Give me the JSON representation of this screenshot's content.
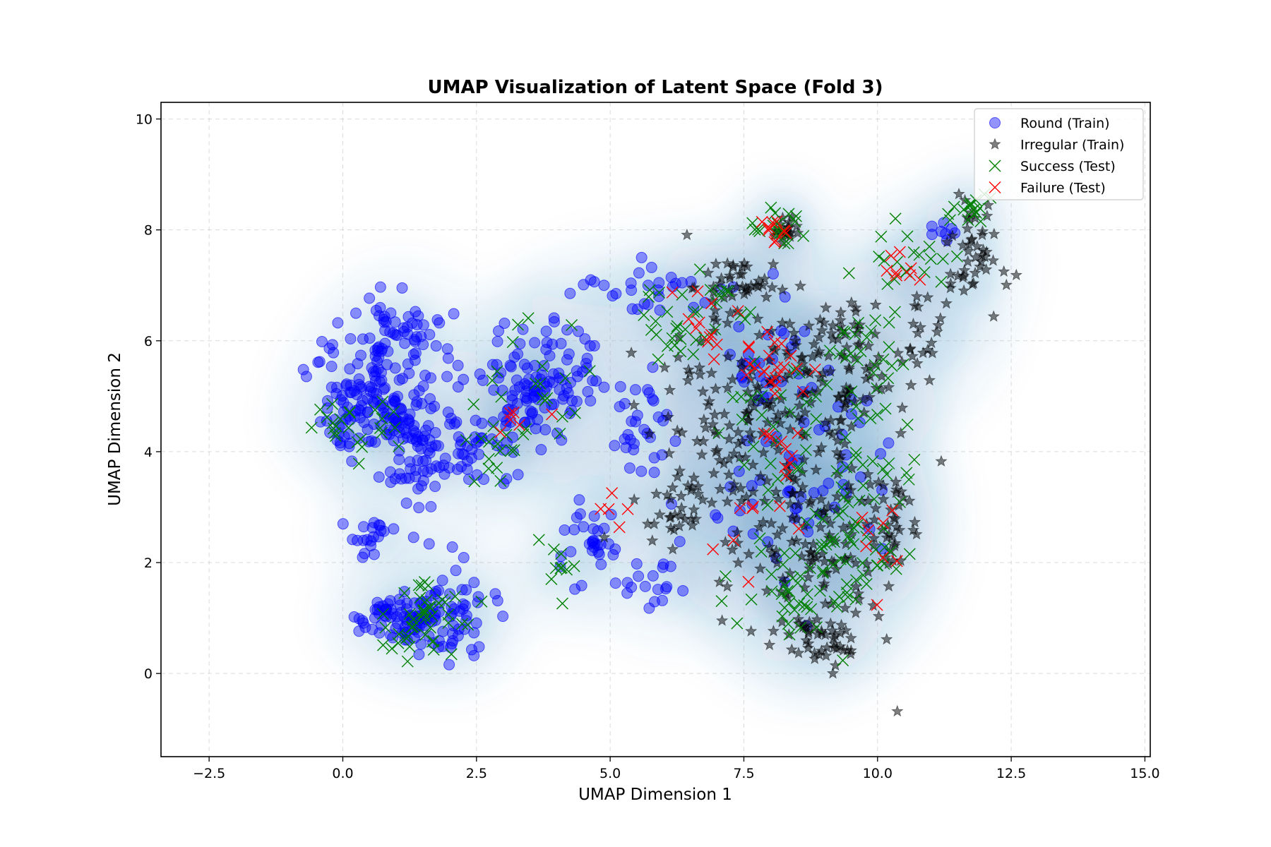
{
  "chart_data": {
    "type": "scatter",
    "title": "UMAP Visualization of Latent Space (Fold 3)",
    "xlabel": "UMAP Dimension 1",
    "ylabel": "UMAP Dimension 2",
    "xlim": [
      -3.4,
      15.1
    ],
    "ylim": [
      -1.5,
      10.3
    ],
    "x_ticks": [
      "−2.5",
      "0.0",
      "2.5",
      "5.0",
      "7.5",
      "10.0",
      "12.5",
      "15.0"
    ],
    "x_tick_values": [
      -2.5,
      0.0,
      2.5,
      5.0,
      7.5,
      10.0,
      12.5,
      15.0
    ],
    "y_ticks": [
      "0",
      "2",
      "4",
      "6",
      "8",
      "10"
    ],
    "y_tick_values": [
      0,
      2,
      4,
      6,
      8,
      10
    ],
    "grid": true,
    "legend_position": "top-right",
    "background": "kde-density-contours",
    "colors": {
      "round": "#0000ff",
      "irregular": "#000000",
      "success": "#008000",
      "failure": "#ff0000",
      "density": "#2c6fae"
    },
    "series": [
      {
        "name": "Round (Train)",
        "marker": "circle",
        "color": "#0000ff",
        "clusters": [
          {
            "cx": 0.5,
            "cy": 5.0,
            "sx": 0.5,
            "sy": 0.55,
            "n": 120
          },
          {
            "cx": 1.5,
            "cy": 4.1,
            "sx": 0.55,
            "sy": 0.6,
            "n": 120
          },
          {
            "cx": 1.1,
            "cy": 6.2,
            "sx": 0.45,
            "sy": 0.35,
            "n": 50
          },
          {
            "cx": 1.2,
            "cy": 1.0,
            "sx": 0.45,
            "sy": 0.25,
            "n": 90
          },
          {
            "cx": 2.2,
            "cy": 1.1,
            "sx": 0.35,
            "sy": 0.4,
            "n": 40
          },
          {
            "cx": 0.6,
            "cy": 2.5,
            "sx": 0.25,
            "sy": 0.2,
            "n": 20
          },
          {
            "cx": 3.3,
            "cy": 5.0,
            "sx": 0.5,
            "sy": 0.6,
            "n": 80
          },
          {
            "cx": 4.0,
            "cy": 5.3,
            "sx": 0.45,
            "sy": 0.5,
            "n": 45
          },
          {
            "cx": 4.6,
            "cy": 2.4,
            "sx": 0.25,
            "sy": 0.45,
            "n": 30
          },
          {
            "cx": 5.5,
            "cy": 6.9,
            "sx": 0.7,
            "sy": 0.25,
            "n": 30
          },
          {
            "cx": 5.6,
            "cy": 4.6,
            "sx": 0.35,
            "sy": 0.5,
            "n": 30
          },
          {
            "cx": 6.0,
            "cy": 1.6,
            "sx": 0.35,
            "sy": 0.3,
            "n": 20
          },
          {
            "cx": 8.0,
            "cy": 3.2,
            "sx": 0.7,
            "sy": 1.0,
            "n": 35
          },
          {
            "cx": 8.0,
            "cy": 6.0,
            "sx": 0.6,
            "sy": 0.6,
            "n": 25
          },
          {
            "cx": 9.3,
            "cy": 4.0,
            "sx": 0.6,
            "sy": 0.8,
            "n": 25
          },
          {
            "cx": 11.2,
            "cy": 7.9,
            "sx": 0.2,
            "sy": 0.2,
            "n": 8
          }
        ]
      },
      {
        "name": "Irregular (Train)",
        "marker": "star",
        "color": "#000000",
        "clusters": [
          {
            "cx": 7.3,
            "cy": 4.6,
            "sx": 0.8,
            "sy": 1.0,
            "n": 120
          },
          {
            "cx": 8.6,
            "cy": 2.4,
            "sx": 0.8,
            "sy": 1.0,
            "n": 140
          },
          {
            "cx": 9.2,
            "cy": 5.6,
            "sx": 0.7,
            "sy": 0.7,
            "n": 110
          },
          {
            "cx": 9.0,
            "cy": 0.6,
            "sx": 0.3,
            "sy": 0.25,
            "n": 35
          },
          {
            "cx": 7.4,
            "cy": 7.0,
            "sx": 0.4,
            "sy": 0.3,
            "n": 40
          },
          {
            "cx": 11.8,
            "cy": 7.4,
            "sx": 0.25,
            "sy": 0.5,
            "n": 45
          },
          {
            "cx": 11.0,
            "cy": 6.2,
            "sx": 0.4,
            "sy": 0.5,
            "n": 20
          },
          {
            "cx": 6.3,
            "cy": 3.0,
            "sx": 0.4,
            "sy": 0.4,
            "n": 25
          },
          {
            "cx": 10.2,
            "cy": 2.7,
            "sx": 0.25,
            "sy": 0.5,
            "n": 30
          },
          {
            "cx": 8.3,
            "cy": 8.0,
            "sx": 0.12,
            "sy": 0.15,
            "n": 20
          }
        ]
      },
      {
        "name": "Success (Test)",
        "marker": "x",
        "color": "#008000",
        "clusters": [
          {
            "cx": 1.5,
            "cy": 1.0,
            "sx": 0.5,
            "sy": 0.35,
            "n": 45
          },
          {
            "cx": 0.3,
            "cy": 4.5,
            "sx": 0.45,
            "sy": 0.3,
            "n": 25
          },
          {
            "cx": 3.0,
            "cy": 4.0,
            "sx": 0.35,
            "sy": 0.35,
            "n": 15
          },
          {
            "cx": 3.8,
            "cy": 5.3,
            "sx": 0.5,
            "sy": 0.6,
            "n": 20
          },
          {
            "cx": 4.0,
            "cy": 1.9,
            "sx": 0.25,
            "sy": 0.25,
            "n": 10
          },
          {
            "cx": 6.5,
            "cy": 6.4,
            "sx": 0.6,
            "sy": 0.45,
            "n": 35
          },
          {
            "cx": 8.2,
            "cy": 8.0,
            "sx": 0.2,
            "sy": 0.18,
            "n": 18
          },
          {
            "cx": 9.6,
            "cy": 2.7,
            "sx": 0.6,
            "sy": 0.9,
            "n": 60
          },
          {
            "cx": 8.5,
            "cy": 1.4,
            "sx": 0.5,
            "sy": 0.45,
            "n": 40
          },
          {
            "cx": 9.8,
            "cy": 5.6,
            "sx": 0.45,
            "sy": 0.55,
            "n": 30
          },
          {
            "cx": 10.7,
            "cy": 7.4,
            "sx": 0.4,
            "sy": 0.35,
            "n": 20
          },
          {
            "cx": 11.7,
            "cy": 8.4,
            "sx": 0.15,
            "sy": 0.15,
            "n": 15
          },
          {
            "cx": 8.0,
            "cy": 4.6,
            "sx": 0.6,
            "sy": 0.7,
            "n": 25
          }
        ]
      },
      {
        "name": "Failure (Test)",
        "marker": "x",
        "color": "#ff0000",
        "clusters": [
          {
            "cx": 8.1,
            "cy": 5.5,
            "sx": 0.3,
            "sy": 0.3,
            "n": 22
          },
          {
            "cx": 8.2,
            "cy": 4.1,
            "sx": 0.2,
            "sy": 0.25,
            "n": 10
          },
          {
            "cx": 6.7,
            "cy": 6.3,
            "sx": 0.35,
            "sy": 0.4,
            "n": 12
          },
          {
            "cx": 8.1,
            "cy": 8.0,
            "sx": 0.15,
            "sy": 0.15,
            "n": 10
          },
          {
            "cx": 3.2,
            "cy": 4.6,
            "sx": 0.3,
            "sy": 0.2,
            "n": 6
          },
          {
            "cx": 10.5,
            "cy": 7.3,
            "sx": 0.2,
            "sy": 0.2,
            "n": 8
          },
          {
            "cx": 9.9,
            "cy": 2.6,
            "sx": 0.3,
            "sy": 0.4,
            "n": 8
          },
          {
            "cx": 7.5,
            "cy": 2.7,
            "sx": 0.5,
            "sy": 0.5,
            "n": 8
          },
          {
            "cx": 5.0,
            "cy": 3.0,
            "sx": 0.3,
            "sy": 0.3,
            "n": 5
          }
        ]
      }
    ]
  }
}
